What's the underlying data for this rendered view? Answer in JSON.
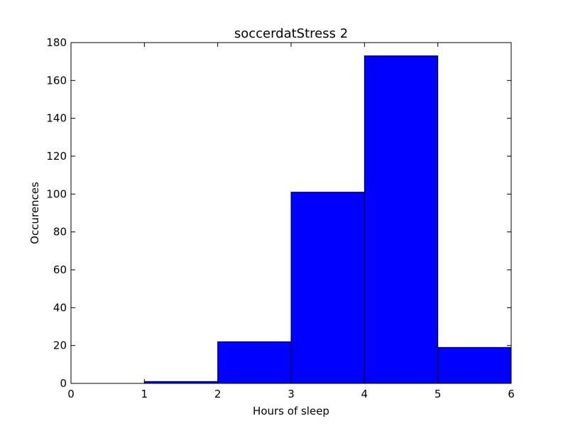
{
  "chart_data": {
    "type": "bar",
    "title": "soccerdatStress 2",
    "xlabel": "Hours of sleep",
    "ylabel": "Occurences",
    "bins": [
      {
        "start": 0,
        "end": 1,
        "value": 0
      },
      {
        "start": 1,
        "end": 2,
        "value": 1
      },
      {
        "start": 2,
        "end": 3,
        "value": 22
      },
      {
        "start": 3,
        "end": 4,
        "value": 101
      },
      {
        "start": 4,
        "end": 5,
        "value": 173
      },
      {
        "start": 5,
        "end": 6,
        "value": 19
      }
    ],
    "xlim": [
      0,
      6
    ],
    "ylim": [
      0,
      180
    ],
    "xticks": [
      0,
      1,
      2,
      3,
      4,
      5,
      6
    ],
    "yticks": [
      0,
      20,
      40,
      60,
      80,
      100,
      120,
      140,
      160,
      180
    ],
    "grid": false,
    "bar_color": "#0000ff",
    "edge_color": "#000000"
  }
}
